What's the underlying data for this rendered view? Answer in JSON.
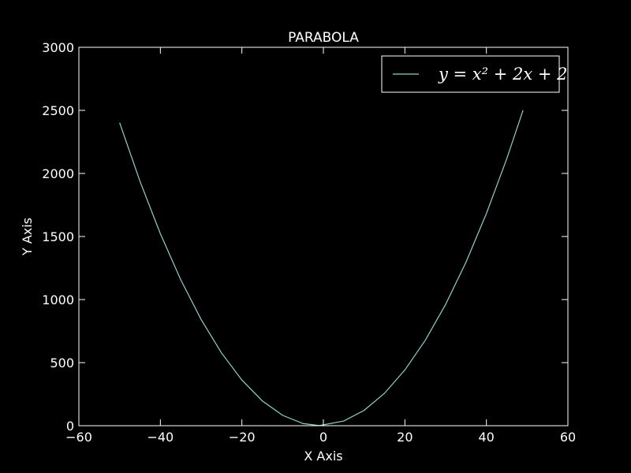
{
  "chart_data": {
    "type": "line",
    "title": "PARABOLA",
    "xlabel": "X Axis",
    "ylabel": "Y Axis",
    "xlim": [
      -60,
      60
    ],
    "ylim": [
      0,
      3000
    ],
    "xticks": [
      -60,
      -40,
      -20,
      0,
      20,
      40,
      60
    ],
    "yticks": [
      0,
      500,
      1000,
      1500,
      2000,
      2500,
      3000
    ],
    "xtick_labels": [
      "−60",
      "−40",
      "−20",
      "0",
      "20",
      "40",
      "60"
    ],
    "ytick_labels": [
      "0",
      "500",
      "1000",
      "1500",
      "2000",
      "2500",
      "3000"
    ],
    "grid": false,
    "legend_position": "top-right",
    "series": [
      {
        "name": "y = x² + 2x + 2",
        "color": "#8dd3c7",
        "x": [
          -50,
          -45,
          -40,
          -35,
          -30,
          -25,
          -20,
          -15,
          -10,
          -5,
          -1,
          5,
          10,
          15,
          20,
          25,
          30,
          35,
          40,
          45,
          49
        ],
        "y": [
          2402,
          1937,
          1522,
          1157,
          842,
          577,
          362,
          197,
          82,
          17,
          1,
          37,
          122,
          257,
          442,
          677,
          962,
          1297,
          1682,
          2117,
          2501
        ]
      }
    ]
  },
  "colors": {
    "background": "#000000",
    "axes": "#ffffff",
    "line": "#8dd3c7"
  }
}
